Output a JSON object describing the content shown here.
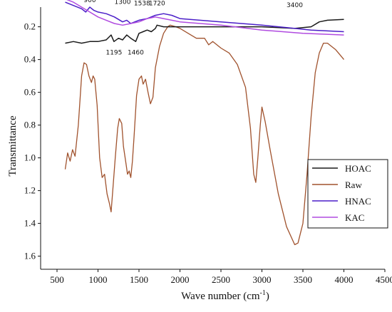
{
  "chart_data": {
    "type": "line",
    "xlabel": "Wave number (cm",
    "xlabel_sup": "-1",
    "xlabel_end": ")",
    "ylabel": "Transmittance",
    "xlim": [
      300,
      4500
    ],
    "ylim": [
      1.68,
      0.08
    ],
    "y_inverted": true,
    "x_ticks": [
      500,
      1000,
      1500,
      2000,
      2500,
      3000,
      3500,
      4000,
      4500
    ],
    "y_ticks": [
      0.2,
      0.4,
      0.6,
      0.8,
      1.0,
      1.2,
      1.4,
      1.6
    ],
    "y_tick_labels": [
      "0.2",
      "0.4",
      "0.6",
      "0.8",
      "1.0",
      "1.2",
      "1.4",
      "1.6"
    ],
    "legend_position": "bottom-right",
    "series": [
      {
        "name": "HOAC",
        "color": "#1a1a1a",
        "points": [
          [
            600,
            0.3
          ],
          [
            700,
            0.29
          ],
          [
            800,
            0.3
          ],
          [
            900,
            0.29
          ],
          [
            1000,
            0.29
          ],
          [
            1100,
            0.28
          ],
          [
            1160,
            0.25
          ],
          [
            1195,
            0.29
          ],
          [
            1250,
            0.27
          ],
          [
            1300,
            0.28
          ],
          [
            1350,
            0.25
          ],
          [
            1400,
            0.27
          ],
          [
            1460,
            0.29
          ],
          [
            1500,
            0.24
          ],
          [
            1550,
            0.23
          ],
          [
            1600,
            0.22
          ],
          [
            1650,
            0.23
          ],
          [
            1700,
            0.21
          ],
          [
            1720,
            0.19
          ],
          [
            1800,
            0.2
          ],
          [
            2000,
            0.2
          ],
          [
            2500,
            0.2
          ],
          [
            3000,
            0.2
          ],
          [
            3400,
            0.21
          ],
          [
            3600,
            0.2
          ],
          [
            3700,
            0.17
          ],
          [
            3800,
            0.16
          ],
          [
            4000,
            0.155
          ]
        ]
      },
      {
        "name": "Raw",
        "color": "#a0522d",
        "points": [
          [
            600,
            1.07
          ],
          [
            630,
            0.97
          ],
          [
            660,
            1.02
          ],
          [
            690,
            0.95
          ],
          [
            720,
            0.99
          ],
          [
            760,
            0.8
          ],
          [
            800,
            0.5
          ],
          [
            830,
            0.42
          ],
          [
            860,
            0.43
          ],
          [
            890,
            0.5
          ],
          [
            920,
            0.54
          ],
          [
            940,
            0.5
          ],
          [
            960,
            0.52
          ],
          [
            990,
            0.68
          ],
          [
            1020,
            1.0
          ],
          [
            1050,
            1.12
          ],
          [
            1080,
            1.1
          ],
          [
            1110,
            1.22
          ],
          [
            1140,
            1.28
          ],
          [
            1160,
            1.33
          ],
          [
            1180,
            1.2
          ],
          [
            1210,
            1.0
          ],
          [
            1240,
            0.82
          ],
          [
            1260,
            0.76
          ],
          [
            1290,
            0.79
          ],
          [
            1310,
            0.93
          ],
          [
            1340,
            1.03
          ],
          [
            1360,
            1.1
          ],
          [
            1380,
            1.08
          ],
          [
            1400,
            1.12
          ],
          [
            1420,
            1.02
          ],
          [
            1440,
            0.87
          ],
          [
            1470,
            0.62
          ],
          [
            1500,
            0.52
          ],
          [
            1530,
            0.5
          ],
          [
            1550,
            0.55
          ],
          [
            1580,
            0.52
          ],
          [
            1610,
            0.6
          ],
          [
            1640,
            0.67
          ],
          [
            1670,
            0.63
          ],
          [
            1700,
            0.45
          ],
          [
            1750,
            0.32
          ],
          [
            1800,
            0.24
          ],
          [
            1850,
            0.2
          ],
          [
            1880,
            0.19
          ],
          [
            1950,
            0.2
          ],
          [
            2000,
            0.21
          ],
          [
            2100,
            0.24
          ],
          [
            2200,
            0.27
          ],
          [
            2300,
            0.27
          ],
          [
            2350,
            0.31
          ],
          [
            2400,
            0.29
          ],
          [
            2500,
            0.33
          ],
          [
            2600,
            0.36
          ],
          [
            2700,
            0.43
          ],
          [
            2800,
            0.57
          ],
          [
            2860,
            0.82
          ],
          [
            2900,
            1.1
          ],
          [
            2925,
            1.15
          ],
          [
            2950,
            1.0
          ],
          [
            2980,
            0.8
          ],
          [
            3000,
            0.69
          ],
          [
            3040,
            0.78
          ],
          [
            3100,
            0.95
          ],
          [
            3200,
            1.22
          ],
          [
            3300,
            1.42
          ],
          [
            3400,
            1.53
          ],
          [
            3440,
            1.52
          ],
          [
            3500,
            1.4
          ],
          [
            3550,
            1.1
          ],
          [
            3600,
            0.75
          ],
          [
            3650,
            0.48
          ],
          [
            3700,
            0.36
          ],
          [
            3750,
            0.3
          ],
          [
            3800,
            0.3
          ],
          [
            3850,
            0.32
          ],
          [
            3900,
            0.34
          ],
          [
            3950,
            0.37
          ],
          [
            4000,
            0.4
          ]
        ]
      },
      {
        "name": "HNAC",
        "color": "#4b1fc8",
        "points": [
          [
            600,
            0.05
          ],
          [
            700,
            0.07
          ],
          [
            800,
            0.09
          ],
          [
            850,
            0.11
          ],
          [
            900,
            0.08
          ],
          [
            950,
            0.1
          ],
          [
            1000,
            0.11
          ],
          [
            1100,
            0.12
          ],
          [
            1200,
            0.14
          ],
          [
            1300,
            0.17
          ],
          [
            1350,
            0.16
          ],
          [
            1400,
            0.18
          ],
          [
            1500,
            0.16
          ],
          [
            1600,
            0.15
          ],
          [
            1700,
            0.13
          ],
          [
            1800,
            0.12
          ],
          [
            1900,
            0.13
          ],
          [
            2000,
            0.15
          ],
          [
            2500,
            0.17
          ],
          [
            3000,
            0.19
          ],
          [
            3400,
            0.21
          ],
          [
            3600,
            0.22
          ],
          [
            4000,
            0.23
          ]
        ]
      },
      {
        "name": "KAC",
        "color": "#b04be0",
        "points": [
          [
            600,
            0.03
          ],
          [
            700,
            0.05
          ],
          [
            800,
            0.08
          ],
          [
            900,
            0.11
          ],
          [
            1000,
            0.14
          ],
          [
            1100,
            0.16
          ],
          [
            1200,
            0.18
          ],
          [
            1300,
            0.19
          ],
          [
            1400,
            0.18
          ],
          [
            1500,
            0.17
          ],
          [
            1600,
            0.15
          ],
          [
            1700,
            0.14
          ],
          [
            1800,
            0.15
          ],
          [
            1900,
            0.16
          ],
          [
            2000,
            0.17
          ],
          [
            2500,
            0.19
          ],
          [
            3000,
            0.22
          ],
          [
            3500,
            0.24
          ],
          [
            4000,
            0.25
          ]
        ]
      }
    ],
    "annotations": [
      {
        "text": "900",
        "x": 900,
        "y": 0.05
      },
      {
        "text": "1300",
        "x": 1300,
        "y": 0.06
      },
      {
        "text": "1538",
        "x": 1538,
        "y": 0.07
      },
      {
        "text": "1720",
        "x": 1720,
        "y": 0.07
      },
      {
        "text": "3400",
        "x": 3400,
        "y": 0.08
      },
      {
        "text": "1195",
        "x": 1195,
        "y": 0.37
      },
      {
        "text": "1460",
        "x": 1460,
        "y": 0.37
      }
    ]
  }
}
